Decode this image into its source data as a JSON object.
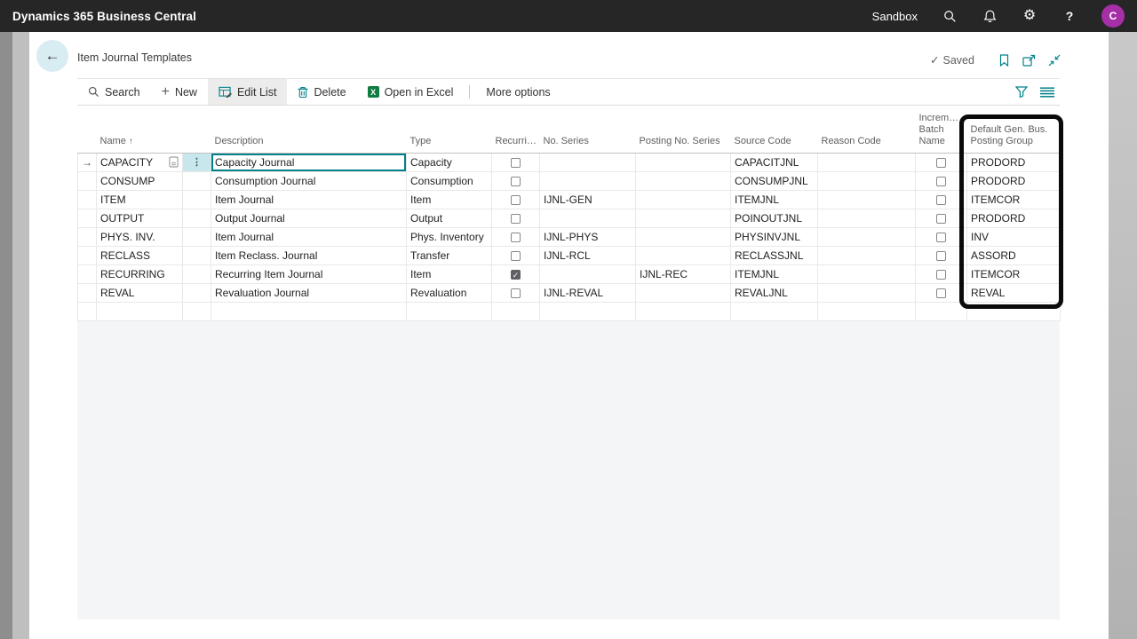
{
  "topbar": {
    "app_title": "Dynamics 365 Business Central",
    "environment": "Sandbox",
    "avatar_initial": "C"
  },
  "page_header": {
    "title": "Item Journal Templates",
    "saved_check": "✓",
    "saved_label": "Saved"
  },
  "action_bar": {
    "items": [
      {
        "label": "Search",
        "icon": "search-icon"
      },
      {
        "label": "New",
        "icon": "plus-icon"
      },
      {
        "label": "Edit List",
        "icon": "edit-list-icon",
        "selected": true
      },
      {
        "label": "Delete",
        "icon": "delete-icon"
      },
      {
        "label": "Open in Excel",
        "icon": "excel-icon"
      },
      {
        "label": "More options",
        "icon": null
      }
    ],
    "right_icons": [
      "filter-icon",
      "list-view-icon"
    ]
  },
  "table": {
    "columns": [
      {
        "key": "name",
        "lines": [
          "Name"
        ],
        "sort_indicator": "↑"
      },
      {
        "key": "description",
        "lines": [
          "Description"
        ]
      },
      {
        "key": "type",
        "lines": [
          "Type"
        ]
      },
      {
        "key": "recurring",
        "lines": [
          "Recurri…"
        ],
        "cell_type": "checkbox"
      },
      {
        "key": "no_series",
        "lines": [
          "No. Series"
        ]
      },
      {
        "key": "posting_no_series",
        "lines": [
          "Posting No. Series"
        ]
      },
      {
        "key": "source_code",
        "lines": [
          "Source Code"
        ]
      },
      {
        "key": "reason_code",
        "lines": [
          "Reason Code"
        ]
      },
      {
        "key": "batch_name",
        "lines": [
          "Increm…",
          "Batch",
          "Name"
        ],
        "cell_type": "checkbox"
      },
      {
        "key": "default_gen_bus_posting_group",
        "lines": [
          "Default Gen. Bus.",
          "Posting Group"
        ]
      }
    ],
    "rows": [
      {
        "name": "CAPACITY",
        "description": "Capacity Journal",
        "type": "Capacity",
        "recurring": false,
        "no_series": "",
        "posting_no_series": "",
        "source_code": "CAPACITJNL",
        "reason_code": "",
        "batch_name": false,
        "default_gen_bus_posting_group": "PRODORD"
      },
      {
        "name": "CONSUMP",
        "description": "Consumption Journal",
        "type": "Consumption",
        "recurring": false,
        "no_series": "",
        "posting_no_series": "",
        "source_code": "CONSUMPJNL",
        "reason_code": "",
        "batch_name": false,
        "default_gen_bus_posting_group": "PRODORD"
      },
      {
        "name": "ITEM",
        "description": "Item Journal",
        "type": "Item",
        "recurring": false,
        "no_series": "IJNL-GEN",
        "posting_no_series": "",
        "source_code": "ITEMJNL",
        "reason_code": "",
        "batch_name": false,
        "default_gen_bus_posting_group": "ITEMCOR"
      },
      {
        "name": "OUTPUT",
        "description": "Output Journal",
        "type": "Output",
        "recurring": false,
        "no_series": "",
        "posting_no_series": "",
        "source_code": "POINOUTJNL",
        "reason_code": "",
        "batch_name": false,
        "default_gen_bus_posting_group": "PRODORD"
      },
      {
        "name": "PHYS. INV.",
        "description": "Item Journal",
        "type": "Phys. Inventory",
        "recurring": false,
        "no_series": "IJNL-PHYS",
        "posting_no_series": "",
        "source_code": "PHYSINVJNL",
        "reason_code": "",
        "batch_name": false,
        "default_gen_bus_posting_group": "INV"
      },
      {
        "name": "RECLASS",
        "description": "Item Reclass. Journal",
        "type": "Transfer",
        "recurring": false,
        "no_series": "IJNL-RCL",
        "posting_no_series": "",
        "source_code": "RECLASSJNL",
        "reason_code": "",
        "batch_name": false,
        "default_gen_bus_posting_group": "ASSORD"
      },
      {
        "name": "RECURRING",
        "description": "Recurring Item Journal",
        "type": "Item",
        "recurring": true,
        "no_series": "",
        "posting_no_series": "IJNL-REC",
        "source_code": "ITEMJNL",
        "reason_code": "",
        "batch_name": false,
        "default_gen_bus_posting_group": "ITEMCOR"
      },
      {
        "name": "REVAL",
        "description": "Revaluation Journal",
        "type": "Revaluation",
        "recurring": false,
        "no_series": "IJNL-REVAL",
        "posting_no_series": "",
        "source_code": "REVALJNL",
        "reason_code": "",
        "batch_name": false,
        "default_gen_bus_posting_group": "REVAL"
      }
    ],
    "has_empty_row": true,
    "focused_cell": {
      "row": 0,
      "key": "description"
    },
    "row_selector_arrow": "→",
    "row_menu_dots": "⋮"
  },
  "annotation": {
    "highlighted_column": "default_gen_bus_posting_group"
  },
  "colors": {
    "accent_teal": "#008089",
    "excel_green": "#107C41",
    "avatar_purple": "#A62FA8",
    "topbar_bg": "#262626",
    "highlight_box": "#0A0A0A",
    "row_menu_bg": "#C7E7EC"
  }
}
